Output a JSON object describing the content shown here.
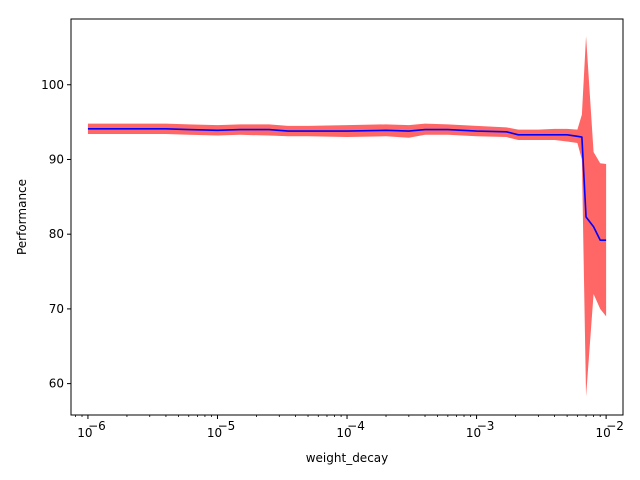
{
  "chart_data": {
    "type": "line",
    "title": "",
    "xlabel": "weight_decay",
    "ylabel": "Performance",
    "xscale": "log",
    "xlim": [
      7.4e-07,
      0.0135
    ],
    "ylim": [
      55.8,
      108.8
    ],
    "grid": false,
    "legend": "none",
    "colors": {
      "mean_line": "#0000ff",
      "band": "#ff0000",
      "band_opacity": 0.6,
      "axes": "#000000"
    },
    "xticks": [
      {
        "value": 1e-06,
        "base": "10",
        "exp": "−6"
      },
      {
        "value": 1e-05,
        "base": "10",
        "exp": "−5"
      },
      {
        "value": 0.0001,
        "base": "10",
        "exp": "−4"
      },
      {
        "value": 0.001,
        "base": "10",
        "exp": "−3"
      },
      {
        "value": 0.01,
        "base": "10",
        "exp": "−2"
      }
    ],
    "yticks": [
      60,
      70,
      80,
      90,
      100
    ],
    "series": [
      {
        "x": [
          1e-06,
          1.5e-06,
          2.5e-06,
          4e-06,
          6e-06,
          1e-05,
          1.5e-05,
          2.5e-05,
          3.5e-05,
          5e-05,
          0.0001,
          0.0002,
          0.0003,
          0.0004,
          0.0006,
          0.001,
          0.0017,
          0.0021,
          0.003,
          0.004,
          0.005,
          0.006,
          0.0065,
          0.007,
          0.008,
          0.009,
          0.01
        ],
        "y": [
          94.1,
          94.1,
          94.1,
          94.1,
          94.0,
          93.9,
          94.0,
          94.0,
          93.8,
          93.8,
          93.8,
          93.9,
          93.8,
          94.0,
          94.0,
          93.8,
          93.7,
          93.3,
          93.3,
          93.3,
          93.3,
          93.1,
          93.0,
          82.3,
          81.0,
          79.2,
          79.2
        ],
        "lower": [
          93.4,
          93.4,
          93.4,
          93.4,
          93.3,
          93.2,
          93.3,
          93.2,
          93.1,
          93.1,
          93.0,
          93.1,
          92.9,
          93.3,
          93.3,
          93.1,
          93.0,
          92.6,
          92.6,
          92.6,
          92.4,
          92.2,
          90.0,
          58.3,
          72.0,
          70.0,
          69.0
        ],
        "upper": [
          94.8,
          94.8,
          94.8,
          94.8,
          94.7,
          94.6,
          94.7,
          94.7,
          94.5,
          94.5,
          94.6,
          94.7,
          94.6,
          94.8,
          94.7,
          94.5,
          94.3,
          94.0,
          94.0,
          94.1,
          94.1,
          94.0,
          96.0,
          106.5,
          91.0,
          89.5,
          89.4
        ]
      }
    ]
  }
}
